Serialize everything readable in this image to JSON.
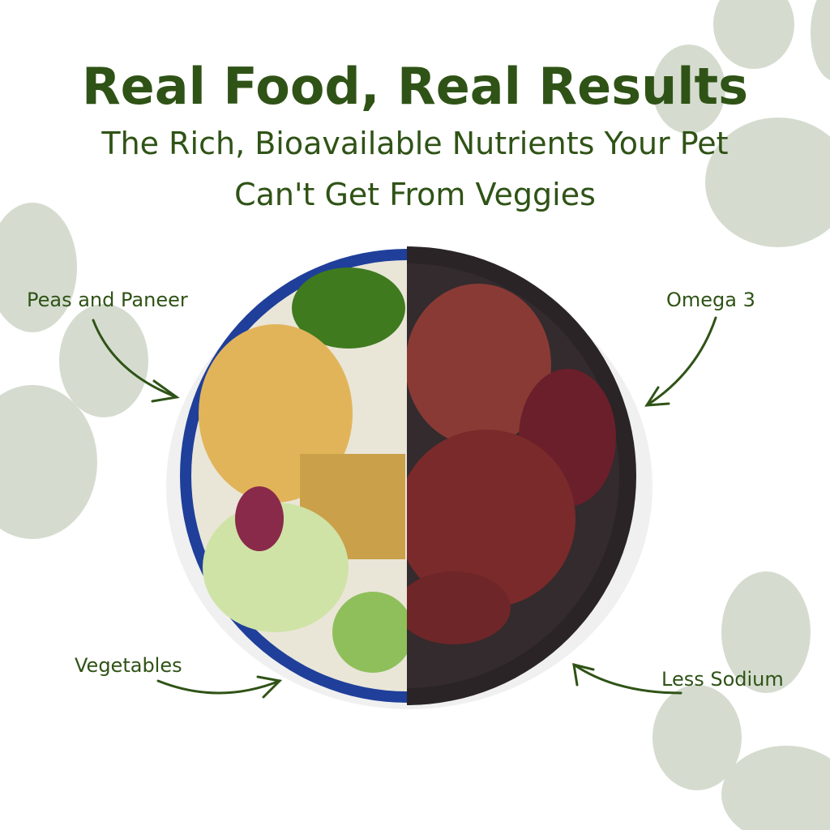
{
  "header": {
    "title": "Real Food, Real Results",
    "subtitle_line1": "The Rich, Bioavailable Nutrients Your Pet",
    "subtitle_line2": "Can't Get From Veggies"
  },
  "labels": {
    "top_left": "Peas and Paneer",
    "top_right": "Omega 3",
    "bottom_left": "Vegetables",
    "bottom_right": "Less Sodium"
  },
  "colors": {
    "text": "#2f5316",
    "paw": "#d5dccf",
    "bowl_left_rim": "#1f3f9a",
    "bowl_right": "#2a2426",
    "meat": "#7a2a2a"
  },
  "icons": [
    "paw-print-icon",
    "curved-arrow-icon"
  ]
}
